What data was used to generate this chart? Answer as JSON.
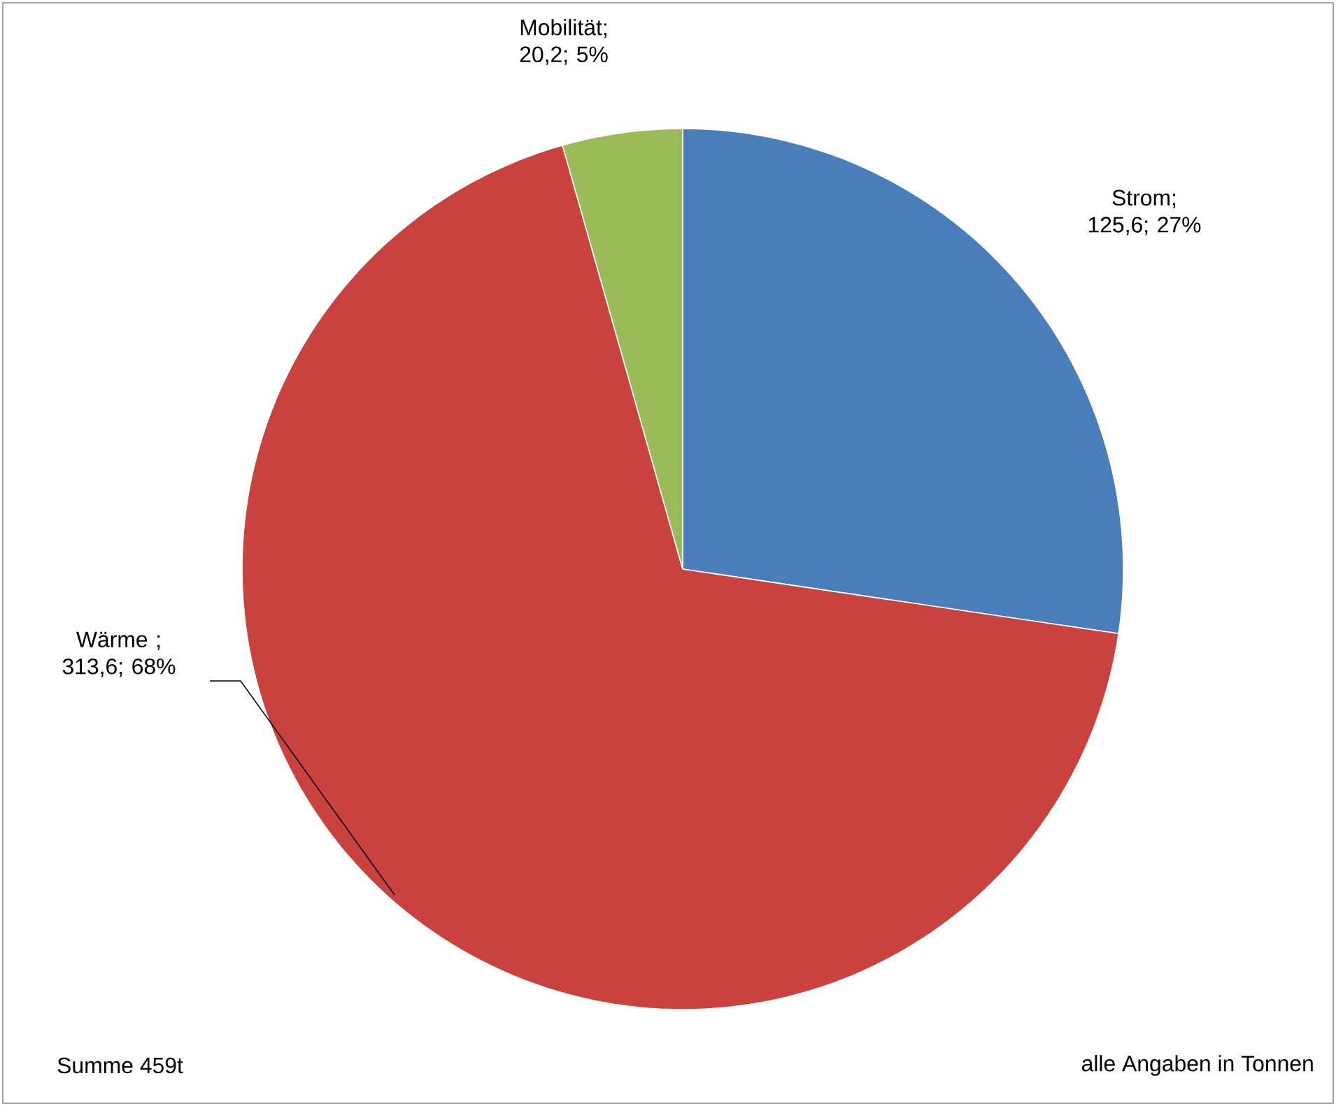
{
  "chart_data": {
    "type": "pie",
    "categories": [
      "Strom",
      "Wärme ",
      "Mobilität"
    ],
    "values": [
      125.6,
      313.6,
      20.2
    ],
    "value_labels": [
      "; 125,6; 27%",
      "; 313,6; 68%",
      "; 20,2; 5%"
    ],
    "colors": [
      "#4a7ebb",
      "#c9423e",
      "#9bbb59"
    ],
    "annotations": [
      "Summe 459t",
      "alle Angaben in Tonnen"
    ]
  }
}
